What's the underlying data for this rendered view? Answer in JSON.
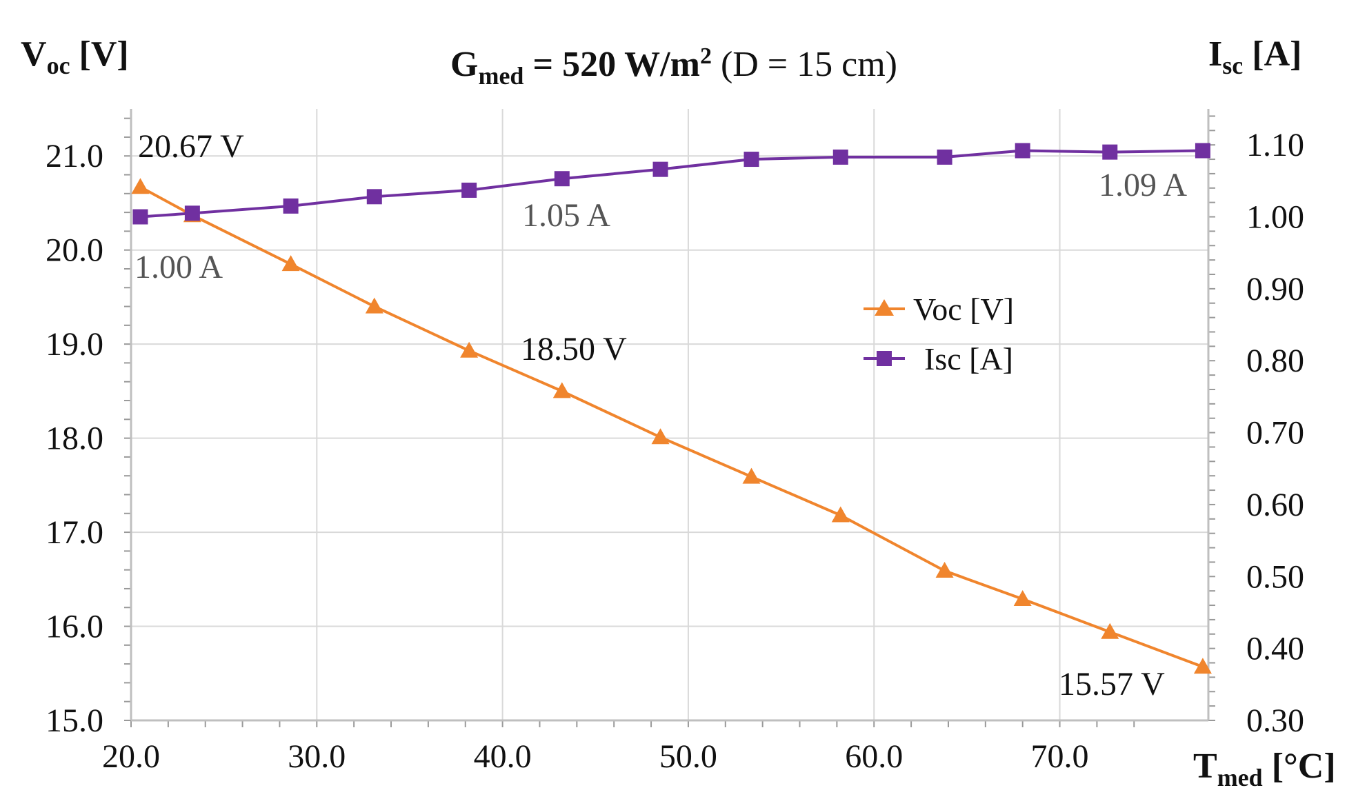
{
  "chart_data": {
    "type": "line",
    "title": {
      "main": "G",
      "main_sub": "med",
      "equals": " = 520 W/m",
      "sup": "2",
      "rest": " (D = 15 cm)"
    },
    "y_left_label": {
      "main": "V",
      "sub": "oc",
      "unit": " [V]"
    },
    "y_right_label": {
      "main": "I",
      "sub": "sc",
      "unit": " [A]"
    },
    "x_label": {
      "main": "T",
      "sub": "med",
      "unit": " [°C]"
    },
    "xlim": [
      20,
      78
    ],
    "ylim_left": [
      15,
      21.5
    ],
    "ylim_right": [
      0.3,
      1.15
    ],
    "x_ticks": [
      "20.0",
      "30.0",
      "40.0",
      "50.0",
      "60.0",
      "70.0"
    ],
    "x_tick_values": [
      20,
      30,
      40,
      50,
      60,
      70
    ],
    "y_left_ticks": [
      "15.0",
      "16.0",
      "17.0",
      "18.0",
      "19.0",
      "20.0",
      "21.0"
    ],
    "y_left_tick_values": [
      15,
      16,
      17,
      18,
      19,
      20,
      21
    ],
    "y_right_ticks": [
      "0.30",
      "0.40",
      "0.50",
      "0.60",
      "0.70",
      "0.80",
      "0.90",
      "1.00",
      "1.10"
    ],
    "y_right_tick_values": [
      0.3,
      0.4,
      0.5,
      0.6,
      0.7,
      0.8,
      0.9,
      1.0,
      1.1
    ],
    "grid": true,
    "legend_position": "center-right",
    "series": [
      {
        "name": "Voc [V]",
        "axis": "left",
        "color": "#f0852d",
        "marker": "triangle",
        "x": [
          20.5,
          23.3,
          28.6,
          33.1,
          38.2,
          43.2,
          48.5,
          53.4,
          58.2,
          63.8,
          68.0,
          72.7,
          77.7
        ],
        "y": [
          20.67,
          20.37,
          19.85,
          19.4,
          18.93,
          18.5,
          18.01,
          17.59,
          17.18,
          16.59,
          16.29,
          15.94,
          15.57
        ]
      },
      {
        "name": "Isc [A]",
        "axis": "right",
        "color": "#7030a0",
        "marker": "square",
        "x": [
          20.5,
          23.3,
          28.6,
          33.1,
          38.2,
          43.2,
          48.5,
          53.4,
          58.2,
          63.8,
          68.0,
          72.7,
          77.7
        ],
        "y": [
          1.0,
          1.005,
          1.015,
          1.028,
          1.037,
          1.053,
          1.066,
          1.08,
          1.083,
          1.083,
          1.092,
          1.09,
          1.092
        ]
      }
    ],
    "annotations": [
      {
        "text": "20.67 V",
        "series": 0,
        "color": "#111111"
      },
      {
        "text": "18.50 V",
        "series": 0,
        "color": "#111111"
      },
      {
        "text": "15.57 V",
        "series": 0,
        "color": "#111111"
      },
      {
        "text": "1.00 A",
        "series": 1,
        "color": "#555555"
      },
      {
        "text": "1.05 A",
        "series": 1,
        "color": "#555555"
      },
      {
        "text": "1.09 A",
        "series": 1,
        "color": "#555555"
      }
    ]
  }
}
